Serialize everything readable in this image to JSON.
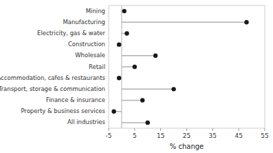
{
  "chart_data": {
    "type": "lollipop",
    "orientation": "horizontal",
    "categories": [
      "All industries",
      "Property & business services",
      "Finance & insurance",
      "Transport, storage & communication",
      "Accommodation, cafes & restaurants",
      "Retail",
      "Wholesale",
      "Construction",
      "Electricity, gas & water",
      "Manufacturing",
      "Mining"
    ],
    "values": [
      10,
      -3,
      8,
      20,
      -1,
      5,
      13,
      -1,
      2,
      48,
      1
    ],
    "color": "#1a1a1a",
    "xlabel": "% change",
    "xlim": [
      -5,
      55
    ],
    "xticks": [
      -5,
      5,
      15,
      25,
      35,
      45,
      55
    ],
    "grid": false
  }
}
